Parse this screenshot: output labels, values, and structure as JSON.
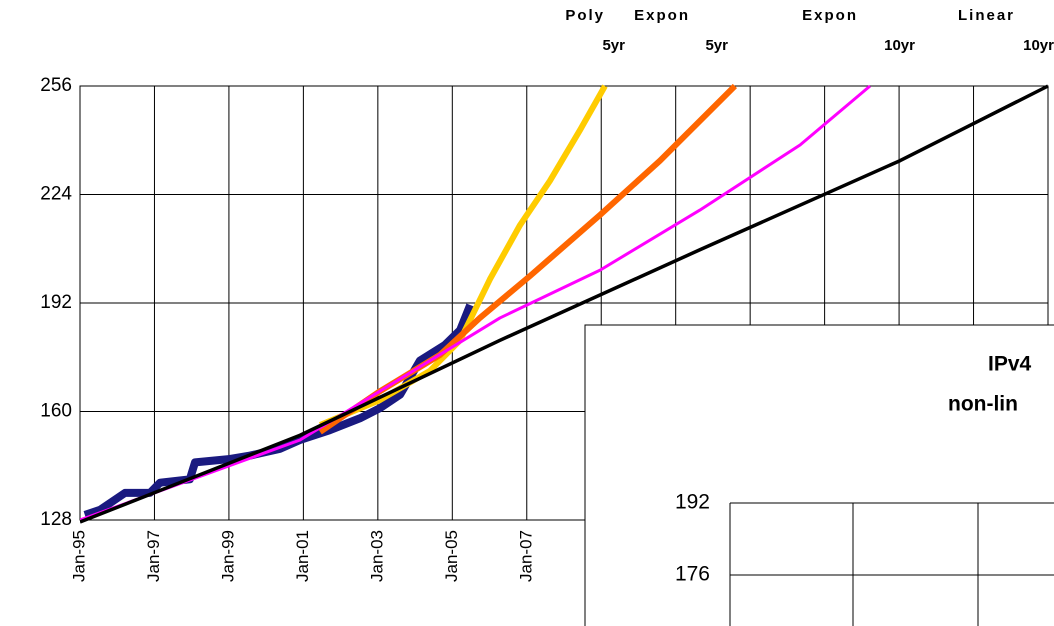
{
  "chart_data": [
    {
      "type": "line",
      "xlim": [
        1995,
        2021
      ],
      "ylim": [
        128,
        256
      ],
      "yticks": [
        128,
        160,
        192,
        224,
        256
      ],
      "xticks": [
        {
          "value": 1995,
          "label": "Jan-95"
        },
        {
          "value": 1997,
          "label": "Jan-97"
        },
        {
          "value": 1999,
          "label": "Jan-99"
        },
        {
          "value": 2001,
          "label": "Jan-01"
        },
        {
          "value": 2003,
          "label": "Jan-03"
        },
        {
          "value": 2005,
          "label": "Jan-05"
        },
        {
          "value": 2007,
          "label": "Jan-07"
        },
        2009,
        2011,
        2013,
        2015,
        2017,
        2019,
        2021
      ],
      "grid": true,
      "series": [
        {
          "color": "#1a1a80",
          "x": [
            1995.13,
            1995.54,
            1996.21,
            1996.88,
            1997.15,
            1997.95,
            1998.09,
            1999.03,
            1999.57,
            2000.37,
            2000.91,
            2001.71,
            2002.52,
            2003.06,
            2003.6,
            2004.13,
            2004.8,
            2005.21,
            2005.48
          ],
          "values": [
            129.5,
            131,
            136,
            136,
            139,
            140,
            145,
            146,
            147,
            149,
            151.6,
            154.5,
            158,
            161,
            165,
            175,
            179.6,
            184,
            191.4
          ]
        },
        {
          "label": [
            "Poly",
            "5yr"
          ],
          "color": "#ffcc00",
          "x": [
            2001.45,
            2003.06,
            2004.4,
            2005.21,
            2006.01,
            2006.82,
            2007.62,
            2008.43,
            2009.1
          ],
          "values": [
            156,
            163.4,
            172,
            181,
            199,
            215,
            228,
            243,
            256
          ]
        },
        {
          "label": [
            "Expon",
            "5yr"
          ],
          "color": "#ff6600",
          "x": [
            2001.45,
            2003.06,
            2004.67,
            2005.74,
            2007.09,
            2008.97,
            2010.58,
            2012.59
          ],
          "values": [
            154,
            166,
            176.7,
            187.6,
            200,
            218,
            234,
            256
          ]
        },
        {
          "label": [
            "Expon",
            "10yr"
          ],
          "color": "#ff00ff",
          "x": [
            1995,
            2000.91,
            2006.28,
            2008.97,
            2011.65,
            2014.34,
            2016.22
          ],
          "values": [
            128,
            151.6,
            187.6,
            201.7,
            219.4,
            238.6,
            256
          ]
        },
        {
          "label": [
            "Linear",
            "10yr"
          ],
          "color": "#000000",
          "x": [
            1995,
            2000.91,
            2006.28,
            2011.65,
            2017.03,
            2021
          ],
          "values": [
            127.4,
            153,
            181,
            207.7,
            234,
            256
          ]
        }
      ]
    },
    {
      "type": "line",
      "title": [
        "IPv4",
        "non-lin"
      ],
      "ylim": [
        176,
        192
      ],
      "yticks": [
        176,
        192
      ]
    }
  ]
}
